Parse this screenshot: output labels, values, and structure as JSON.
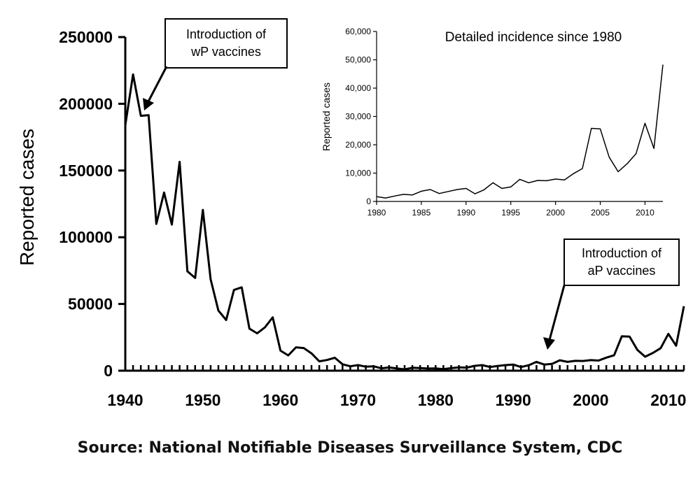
{
  "source_note": "Source: National Notifiable Diseases Surveillance System, CDC",
  "colors": {
    "line": "#000000",
    "background": "#ffffff"
  },
  "chart_data": [
    {
      "type": "line",
      "ylabel": "Reported cases",
      "xlabel": "",
      "xlim": [
        1940,
        2012
      ],
      "ylim": [
        0,
        250000
      ],
      "x_ticks": [
        1940,
        1950,
        1960,
        1970,
        1980,
        1990,
        2000,
        2010
      ],
      "y_ticks": [
        0,
        50000,
        100000,
        150000,
        200000,
        250000
      ],
      "x_tick_labels": [
        "1940",
        "1950",
        "1960",
        "1970",
        "1980",
        "1990",
        "2000",
        "2010"
      ],
      "y_tick_labels": [
        "0",
        "50000",
        "100000",
        "150000",
        "200000",
        "250000"
      ],
      "grid": false,
      "series": [
        {
          "x": [
            1940,
            1941,
            1942,
            1943,
            1944,
            1945,
            1946,
            1947,
            1948,
            1949,
            1950,
            1951,
            1952,
            1953,
            1954,
            1955,
            1956,
            1957,
            1958,
            1959,
            1960,
            1961,
            1962,
            1963,
            1964,
            1965,
            1966,
            1967,
            1968,
            1969,
            1970,
            1971,
            1972,
            1973,
            1974,
            1975,
            1976,
            1977,
            1978,
            1979,
            1980,
            1981,
            1982,
            1983,
            1984,
            1985,
            1986,
            1987,
            1988,
            1989,
            1990,
            1991,
            1992,
            1993,
            1994,
            1995,
            1996,
            1997,
            1998,
            1999,
            2000,
            2001,
            2002,
            2003,
            2004,
            2005,
            2006,
            2007,
            2008,
            2009,
            2010,
            2011,
            2012
          ],
          "y": [
            184000,
            222000,
            191000,
            191500,
            110000,
            133500,
            109500,
            156500,
            74500,
            69500,
            120500,
            68500,
            45000,
            38000,
            60500,
            62500,
            31500,
            28000,
            32500,
            40000,
            15000,
            11500,
            17500,
            17000,
            13000,
            7000,
            8000,
            9700,
            4800,
            3300,
            4200,
            3000,
            3300,
            1800,
            2400,
            1700,
            1000,
            2200,
            2000,
            1600,
            1700,
            1200,
            1900,
            2500,
            2300,
            3600,
            4200,
            2800,
            3500,
            4200,
            4600,
            2700,
            4100,
            6600,
            4600,
            5100,
            7800,
            6600,
            7400,
            7300,
            7900,
            7600,
            9800,
            11600,
            25800,
            25600,
            15600,
            10500,
            13300,
            16900,
            27600,
            18700,
            48300
          ]
        }
      ],
      "annotations": [
        {
          "text_line1": "Introduction of",
          "text_line2": "wP vaccines",
          "points_to_x": 1943,
          "points_to_y": 191000
        },
        {
          "text_line1": "Introduction of",
          "text_line2": "aP vaccines",
          "points_to_x": 1994,
          "points_to_y": 4600
        }
      ]
    },
    {
      "type": "line",
      "title": "Detailed incidence since 1980",
      "ylabel": "Reported cases",
      "xlabel": "",
      "xlim": [
        1980,
        2012
      ],
      "ylim": [
        0,
        60000
      ],
      "x_ticks": [
        1980,
        1985,
        1990,
        1995,
        2000,
        2005,
        2010
      ],
      "y_ticks": [
        0,
        10000,
        20000,
        30000,
        40000,
        50000,
        60000
      ],
      "x_tick_labels": [
        "1980",
        "1985",
        "1990",
        "1995",
        "2000",
        "2005",
        "2010"
      ],
      "y_tick_labels": [
        "0",
        "10,000",
        "20,000",
        "30,000",
        "40,000",
        "50,000",
        "60,000"
      ],
      "grid": false,
      "series": [
        {
          "x": [
            1980,
            1981,
            1982,
            1983,
            1984,
            1985,
            1986,
            1987,
            1988,
            1989,
            1990,
            1991,
            1992,
            1993,
            1994,
            1995,
            1996,
            1997,
            1998,
            1999,
            2000,
            2001,
            2002,
            2003,
            2004,
            2005,
            2006,
            2007,
            2008,
            2009,
            2010,
            2011,
            2012
          ],
          "y": [
            1700,
            1200,
            1900,
            2500,
            2300,
            3600,
            4200,
            2800,
            3500,
            4200,
            4600,
            2700,
            4100,
            6600,
            4600,
            5100,
            7800,
            6600,
            7400,
            7300,
            7900,
            7600,
            9800,
            11600,
            25800,
            25600,
            15600,
            10500,
            13300,
            16900,
            27600,
            18700,
            48300
          ]
        }
      ]
    }
  ]
}
